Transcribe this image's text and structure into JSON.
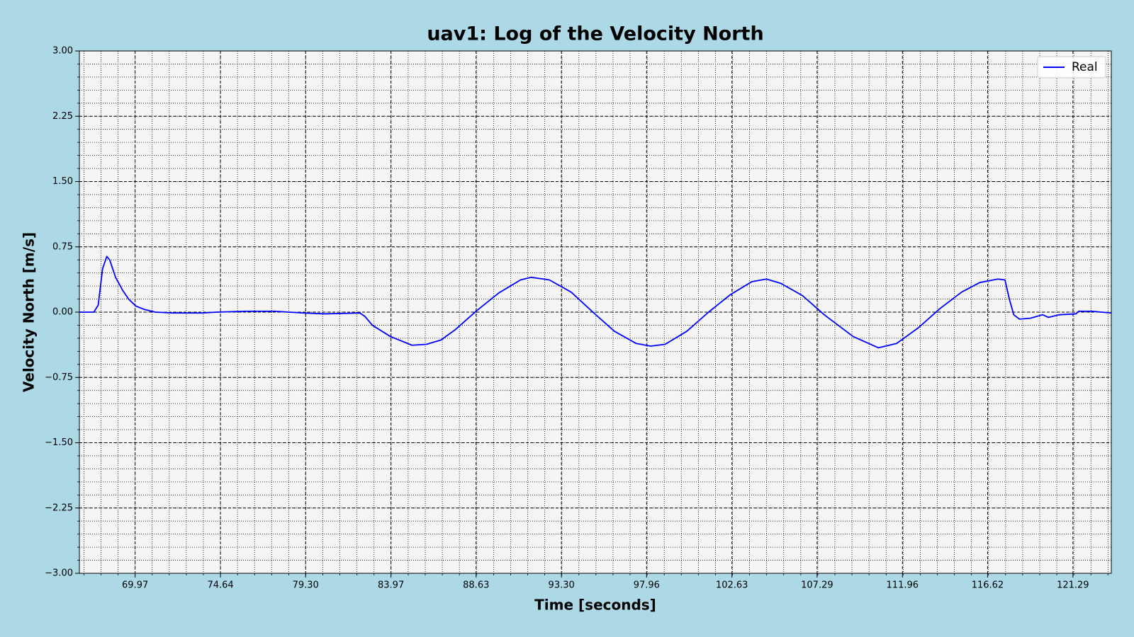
{
  "chart_data": {
    "type": "line",
    "title": "uav1: Log of the Velocity North",
    "x_label": "Time [seconds]",
    "y_label": "Velocity North [m/s]",
    "xlim": [
      66.92,
      123.39
    ],
    "ylim": [
      -3,
      3
    ],
    "xticks": [
      69.97,
      74.64,
      {
        "value": 79.3,
        "label": "79.30"
      },
      83.97,
      88.63,
      {
        "value": 93.3,
        "label": "93.30"
      },
      97.96,
      102.63,
      107.29,
      111.96,
      116.62,
      121.29
    ],
    "yticks": [
      {
        "value": -3,
        "label": "−3.00"
      },
      {
        "value": -2.25,
        "label": "−2.25"
      },
      {
        "value": -1.5,
        "label": "−1.50"
      },
      {
        "value": -0.75,
        "label": "−0.75"
      },
      {
        "value": 0,
        "label": "0.00"
      },
      {
        "value": 0.75,
        "label": "0.75"
      },
      {
        "value": 1.5,
        "label": "1.50"
      },
      {
        "value": 2.25,
        "label": "2.25"
      },
      {
        "value": 3,
        "label": "3.00"
      }
    ],
    "grid": true,
    "minor_divisions": 5,
    "legend": "upper right",
    "x": [
      66.92,
      67.71,
      67.95,
      68.19,
      68.42,
      68.58,
      68.9,
      69.29,
      69.61,
      70.01,
      70.48,
      71.08,
      72.06,
      73.65,
      74.44,
      76.02,
      77.6,
      79.19,
      80.37,
      82.27,
      82.55,
      82.95,
      83.94,
      85.12,
      85.91,
      86.71,
      87.5,
      88.68,
      89.87,
      91.06,
      91.65,
      92.64,
      93.83,
      95.02,
      96.2,
      97.39,
      98.18,
      98.97,
      100.16,
      101.35,
      102.54,
      103.72,
      104.51,
      105.31,
      106.49,
      107.68,
      109.26,
      110.65,
      111.64,
      112.83,
      114.01,
      115.2,
      116.19,
      117.18,
      117.57,
      117.81,
      118.05,
      118.36,
      118.96,
      119.63,
      119.95,
      120.54,
      121.45,
      121.61,
      122.32,
      123.39
    ],
    "series": [
      {
        "name": "Real",
        "color": "#0000ff",
        "values": [
          0.0,
          0.0,
          0.08,
          0.5,
          0.64,
          0.6,
          0.4,
          0.25,
          0.15,
          0.07,
          0.03,
          0.0,
          -0.01,
          -0.01,
          0.0,
          0.01,
          0.01,
          -0.01,
          -0.02,
          -0.01,
          -0.05,
          -0.15,
          -0.28,
          -0.38,
          -0.37,
          -0.32,
          -0.2,
          0.02,
          0.22,
          0.37,
          0.4,
          0.37,
          0.23,
          0.0,
          -0.22,
          -0.36,
          -0.39,
          -0.37,
          -0.22,
          0.0,
          0.2,
          0.35,
          0.38,
          0.33,
          0.19,
          -0.03,
          -0.28,
          -0.41,
          -0.36,
          -0.18,
          0.04,
          0.23,
          0.34,
          0.38,
          0.37,
          0.15,
          -0.03,
          -0.08,
          -0.07,
          -0.03,
          -0.06,
          -0.03,
          -0.02,
          0.01,
          0.01,
          -0.01
        ]
      }
    ]
  }
}
